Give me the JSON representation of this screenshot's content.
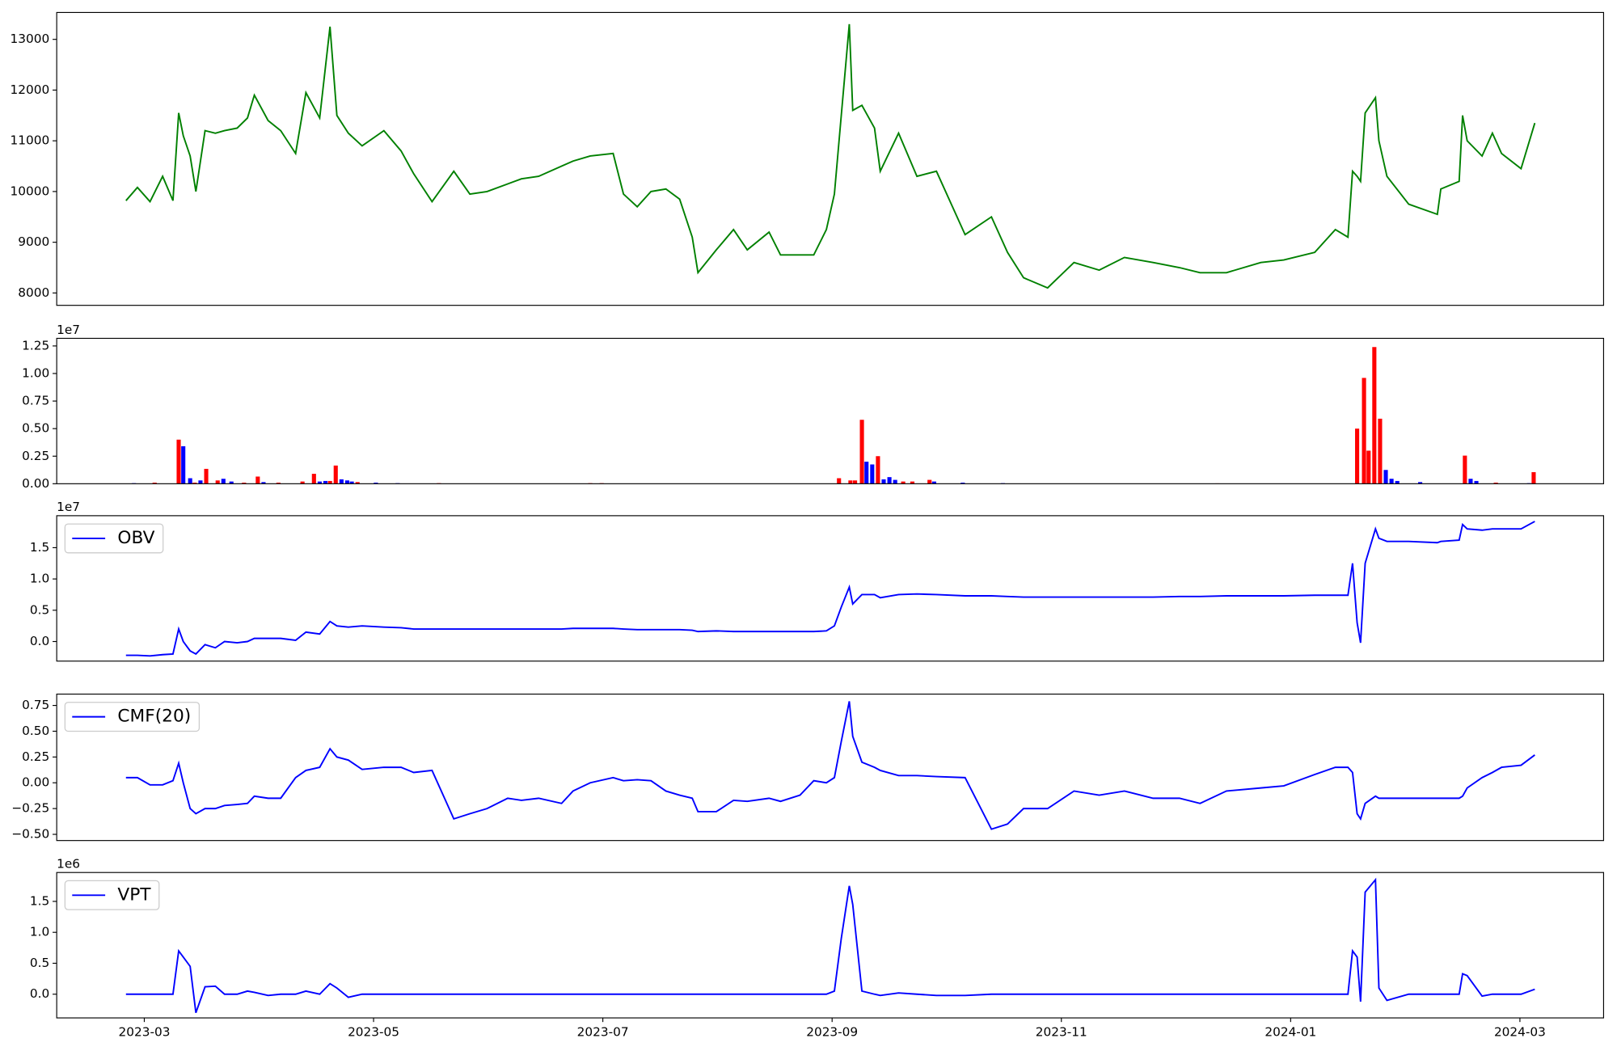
{
  "chart_data": [
    {
      "type": "line",
      "x": [
        1.84,
        1.94,
        2.05,
        2.16,
        2.25,
        2.3,
        2.34,
        2.4,
        2.45,
        2.53,
        2.62,
        2.7,
        2.81,
        2.9,
        2.96,
        3.08,
        3.19,
        3.32,
        3.41,
        3.53,
        3.62,
        3.68,
        3.78,
        3.9,
        4.09,
        4.24,
        4.35,
        4.51,
        4.7,
        4.84,
        4.99,
        5.17,
        5.29,
        5.44,
        5.64,
        5.74,
        5.89,
        6.09,
        6.18,
        6.3,
        6.42,
        6.55,
        6.67,
        6.78,
        6.83,
        6.99,
        7.14,
        7.26,
        7.45,
        7.55,
        7.72,
        7.84,
        7.95,
        8.02,
        8.08,
        8.15,
        8.18,
        8.26,
        8.37,
        8.42,
        8.58,
        8.74,
        8.91,
        9.16,
        9.39,
        9.53,
        9.67,
        9.88,
        10.11,
        10.33,
        10.55,
        10.8,
        11.03,
        11.21,
        11.44,
        11.74,
        11.94,
        12.21,
        12.39,
        12.5,
        12.54,
        12.58,
        12.61,
        12.65,
        12.74,
        12.77,
        12.84,
        13.03,
        13.28,
        13.31,
        13.47,
        13.5,
        13.54,
        13.67,
        13.76,
        13.84,
        14.01,
        14.13
      ],
      "series": [
        {
          "color": "green",
          "values": [
            9820,
            10080,
            9800,
            10300,
            9820,
            11550,
            11100,
            10700,
            10000,
            11200,
            11150,
            11200,
            11250,
            11450,
            11900,
            11400,
            11200,
            10750,
            11950,
            11450,
            13250,
            11500,
            11150,
            10900,
            11200,
            10800,
            10350,
            9800,
            10400,
            9950,
            10000,
            10150,
            10250,
            10300,
            10500,
            10600,
            10700,
            10750,
            9950,
            9700,
            10000,
            10050,
            9850,
            9100,
            8400,
            8850,
            9250,
            8850,
            9200,
            8750,
            8750,
            8750,
            9250,
            9950,
            11500,
            13300,
            11600,
            11700,
            11250,
            10400,
            11150,
            10300,
            10400,
            9150,
            9500,
            8800,
            8300,
            8100,
            8600,
            8450,
            8700,
            8600,
            8500,
            8400,
            8400,
            8600,
            8650,
            8800,
            9250,
            9100,
            10400,
            10300,
            10200,
            11550,
            11850,
            11000,
            10300,
            9750,
            9550,
            10050,
            10200,
            11500,
            11000,
            10700,
            11150,
            10750,
            10450,
            11350
          ]
        }
      ],
      "xlim": [
        1.236,
        14.73
      ],
      "ylim": [
        7756,
        13530
      ],
      "yticks": [
        8000,
        9000,
        10000,
        11000,
        12000,
        13000
      ]
    },
    {
      "type": "bar",
      "series": [
        {
          "color": "red",
          "x": [
            2.09,
            2.3,
            2.44,
            2.54,
            2.64,
            2.87,
            2.99,
            3.17,
            3.38,
            3.48,
            3.62,
            3.67,
            3.86,
            4.57,
            5.89,
            5.99,
            8.06,
            8.16,
            8.2,
            8.26,
            8.4,
            8.62,
            8.7,
            8.85,
            11.36,
            12.58,
            12.64,
            12.68,
            12.73,
            12.78,
            13.52,
            13.79,
            14.12
          ],
          "values": [
            100000,
            4000000,
            100000,
            1350000,
            300000,
            100000,
            650000,
            100000,
            200000,
            900000,
            250000,
            1650000,
            150000,
            50000,
            50000,
            50000,
            500000,
            300000,
            300000,
            5800000,
            2500000,
            200000,
            200000,
            350000,
            30000,
            5000000,
            9600000,
            3000000,
            12400000,
            5900000,
            2550000,
            100000,
            1050000
          ]
        },
        {
          "color": "blue",
          "x": [
            1.91,
            2.34,
            2.4,
            2.49,
            2.69,
            2.76,
            3.04,
            3.53,
            3.58,
            3.72,
            3.77,
            3.81,
            4.02,
            4.21,
            8.3,
            8.35,
            8.45,
            8.5,
            8.55,
            8.89,
            9.14,
            9.49,
            12.83,
            12.88,
            12.93,
            13.13,
            13.57,
            13.62,
            14.08
          ],
          "values": [
            50000,
            3400000,
            500000,
            300000,
            450000,
            200000,
            150000,
            200000,
            250000,
            400000,
            300000,
            200000,
            100000,
            50000,
            2000000,
            1750000,
            400000,
            600000,
            350000,
            200000,
            100000,
            50000,
            1250000,
            450000,
            250000,
            150000,
            450000,
            250000,
            50000
          ]
        }
      ],
      "xlim": [
        1.236,
        14.73
      ],
      "ylim": [
        0,
        13190000
      ],
      "y_offset_label": "1e7",
      "yticks": [
        {
          "value": 0,
          "label": "0.00"
        },
        {
          "value": 2500000,
          "label": "0.25"
        },
        {
          "value": 5000000,
          "label": "0.50"
        },
        {
          "value": 7500000,
          "label": "0.75"
        },
        {
          "value": 10000000,
          "label": "1.00"
        },
        {
          "value": 12500000,
          "label": "1.25"
        }
      ]
    },
    {
      "type": "line",
      "x": [
        1.84,
        1.94,
        2.05,
        2.16,
        2.25,
        2.3,
        2.34,
        2.4,
        2.45,
        2.53,
        2.62,
        2.7,
        2.81,
        2.9,
        2.96,
        3.08,
        3.19,
        3.32,
        3.41,
        3.53,
        3.62,
        3.68,
        3.78,
        3.9,
        4.09,
        4.24,
        4.35,
        4.51,
        4.7,
        4.84,
        4.99,
        5.17,
        5.29,
        5.44,
        5.64,
        5.74,
        5.89,
        6.09,
        6.18,
        6.3,
        6.42,
        6.55,
        6.67,
        6.78,
        6.83,
        6.99,
        7.14,
        7.26,
        7.45,
        7.55,
        7.72,
        7.84,
        7.95,
        8.02,
        8.08,
        8.15,
        8.18,
        8.26,
        8.37,
        8.42,
        8.58,
        8.74,
        8.91,
        9.16,
        9.39,
        9.53,
        9.67,
        9.88,
        10.11,
        10.33,
        10.55,
        10.8,
        11.03,
        11.21,
        11.44,
        11.74,
        11.94,
        12.21,
        12.39,
        12.5,
        12.54,
        12.58,
        12.61,
        12.65,
        12.74,
        12.77,
        12.84,
        13.03,
        13.28,
        13.31,
        13.47,
        13.5,
        13.54,
        13.67,
        13.76,
        13.84,
        14.01,
        14.13
      ],
      "series": [
        {
          "name": "OBV",
          "color": "blue",
          "values": [
            -2200000,
            -2200000,
            -2300000,
            -2100000,
            -2000000,
            2000000,
            0,
            -1500000,
            -2000000,
            -500000,
            -1000000,
            0,
            -200000,
            0,
            500000,
            500000,
            500000,
            200000,
            1500000,
            1200000,
            3200000,
            2500000,
            2300000,
            2500000,
            2300000,
            2200000,
            2000000,
            2000000,
            2000000,
            2000000,
            2000000,
            2000000,
            2000000,
            2000000,
            2000000,
            2100000,
            2100000,
            2100000,
            2000000,
            1900000,
            1900000,
            1900000,
            1900000,
            1800000,
            1600000,
            1700000,
            1600000,
            1600000,
            1600000,
            1600000,
            1600000,
            1600000,
            1700000,
            2500000,
            5500000,
            8700000,
            6000000,
            7500000,
            7500000,
            7000000,
            7500000,
            7600000,
            7500000,
            7300000,
            7300000,
            7200000,
            7100000,
            7100000,
            7100000,
            7100000,
            7100000,
            7100000,
            7200000,
            7200000,
            7300000,
            7300000,
            7300000,
            7400000,
            7400000,
            7400000,
            12500000,
            3000000,
            -200000,
            12500000,
            18000000,
            16500000,
            16000000,
            16000000,
            15800000,
            16000000,
            16200000,
            18700000,
            18000000,
            17800000,
            18000000,
            18000000,
            18000000,
            19200000
          ]
        }
      ],
      "xlim": [
        1.236,
        14.73
      ],
      "ylim": [
        -3130000,
        20110000
      ],
      "y_offset_label": "1e7",
      "legend": "upper left",
      "yticks": [
        {
          "value": 0,
          "label": "0.0"
        },
        {
          "value": 5000000,
          "label": "0.5"
        },
        {
          "value": 10000000,
          "label": "1.0"
        },
        {
          "value": 15000000,
          "label": "1.5"
        }
      ]
    },
    {
      "type": "line",
      "x": [
        1.84,
        1.94,
        2.05,
        2.16,
        2.25,
        2.3,
        2.34,
        2.4,
        2.45,
        2.53,
        2.62,
        2.7,
        2.81,
        2.9,
        2.96,
        3.08,
        3.19,
        3.32,
        3.41,
        3.53,
        3.62,
        3.68,
        3.78,
        3.9,
        4.09,
        4.24,
        4.35,
        4.51,
        4.7,
        4.84,
        4.99,
        5.17,
        5.29,
        5.44,
        5.64,
        5.74,
        5.89,
        6.09,
        6.18,
        6.3,
        6.42,
        6.55,
        6.67,
        6.78,
        6.83,
        6.99,
        7.14,
        7.26,
        7.45,
        7.55,
        7.72,
        7.84,
        7.95,
        8.02,
        8.08,
        8.15,
        8.18,
        8.26,
        8.37,
        8.42,
        8.58,
        8.74,
        8.91,
        9.16,
        9.39,
        9.53,
        9.67,
        9.88,
        10.11,
        10.33,
        10.55,
        10.8,
        11.03,
        11.21,
        11.44,
        11.74,
        11.94,
        12.21,
        12.39,
        12.5,
        12.54,
        12.58,
        12.61,
        12.65,
        12.74,
        12.77,
        12.84,
        13.03,
        13.28,
        13.31,
        13.47,
        13.5,
        13.54,
        13.67,
        13.76,
        13.84,
        14.01,
        14.13
      ],
      "series": [
        {
          "name": "CMF(20)",
          "color": "blue",
          "values": [
            0.05,
            0.05,
            -0.02,
            -0.02,
            0.02,
            0.19,
            0,
            -0.25,
            -0.3,
            -0.25,
            -0.25,
            -0.22,
            -0.21,
            -0.2,
            -0.13,
            -0.15,
            -0.15,
            0.05,
            0.12,
            0.15,
            0.33,
            0.25,
            0.22,
            0.13,
            0.15,
            0.15,
            0.1,
            0.12,
            -0.35,
            -0.3,
            -0.25,
            -0.15,
            -0.17,
            -0.15,
            -0.2,
            -0.08,
            0,
            0.05,
            0.02,
            0.03,
            0.02,
            -0.08,
            -0.12,
            -0.15,
            -0.28,
            -0.28,
            -0.17,
            -0.18,
            -0.15,
            -0.18,
            -0.12,
            0.02,
            0,
            0.05,
            0.4,
            0.79,
            0.45,
            0.2,
            0.15,
            0.12,
            0.07,
            0.07,
            0.06,
            0.05,
            -0.45,
            -0.4,
            -0.25,
            -0.25,
            -0.08,
            -0.12,
            -0.08,
            -0.15,
            -0.15,
            -0.2,
            -0.08,
            -0.05,
            -0.03,
            0.08,
            0.15,
            0.15,
            0.1,
            -0.3,
            -0.35,
            -0.2,
            -0.13,
            -0.15,
            -0.15,
            -0.15,
            -0.15,
            -0.15,
            -0.15,
            -0.13,
            -0.05,
            0.05,
            0.1,
            0.15,
            0.17,
            0.27
          ]
        }
      ],
      "xlim": [
        1.236,
        14.73
      ],
      "ylim": [
        -0.56,
        0.86
      ],
      "legend": "upper left",
      "yticks": [
        {
          "value": -0.5,
          "label": "−0.50"
        },
        {
          "value": -0.25,
          "label": "−0.25"
        },
        {
          "value": 0,
          "label": "0.00"
        },
        {
          "value": 0.25,
          "label": "0.25"
        },
        {
          "value": 0.5,
          "label": "0.50"
        },
        {
          "value": 0.75,
          "label": "0.75"
        }
      ]
    },
    {
      "type": "line",
      "x": [
        1.84,
        1.94,
        2.05,
        2.16,
        2.25,
        2.3,
        2.34,
        2.4,
        2.45,
        2.53,
        2.62,
        2.7,
        2.81,
        2.9,
        2.96,
        3.08,
        3.19,
        3.32,
        3.41,
        3.53,
        3.62,
        3.68,
        3.78,
        3.9,
        4.09,
        4.24,
        4.35,
        4.51,
        4.7,
        4.84,
        4.99,
        5.17,
        5.29,
        5.44,
        5.64,
        5.74,
        5.89,
        6.09,
        6.18,
        6.3,
        6.42,
        6.55,
        6.67,
        6.78,
        6.83,
        6.99,
        7.14,
        7.26,
        7.45,
        7.55,
        7.72,
        7.84,
        7.95,
        8.02,
        8.08,
        8.15,
        8.18,
        8.26,
        8.37,
        8.42,
        8.58,
        8.74,
        8.91,
        9.16,
        9.39,
        9.53,
        9.67,
        9.88,
        10.11,
        10.33,
        10.55,
        10.8,
        11.03,
        11.21,
        11.44,
        11.74,
        11.94,
        12.21,
        12.39,
        12.5,
        12.54,
        12.58,
        12.61,
        12.65,
        12.74,
        12.77,
        12.84,
        13.03,
        13.28,
        13.31,
        13.47,
        13.5,
        13.54,
        13.67,
        13.76,
        13.84,
        14.01,
        14.13
      ],
      "series": [
        {
          "name": "VPT",
          "color": "blue",
          "values": [
            0,
            0,
            0,
            0,
            0,
            700000,
            600000,
            450000,
            -300000,
            120000,
            130000,
            0,
            0,
            50000,
            30000,
            -20000,
            0,
            0,
            50000,
            0,
            170000,
            100000,
            -50000,
            0,
            0,
            0,
            0,
            0,
            0,
            0,
            0,
            0,
            0,
            0,
            0,
            0,
            0,
            0,
            0,
            0,
            0,
            0,
            0,
            0,
            0,
            0,
            0,
            0,
            0,
            0,
            0,
            0,
            0,
            50000,
            900000,
            1750000,
            1450000,
            50000,
            0,
            -20000,
            20000,
            0,
            -20000,
            -20000,
            0,
            0,
            0,
            0,
            0,
            0,
            0,
            0,
            0,
            0,
            0,
            0,
            0,
            0,
            0,
            0,
            700000,
            600000,
            -120000,
            1650000,
            1850000,
            100000,
            -100000,
            0,
            0,
            0,
            0,
            330000,
            300000,
            -30000,
            0,
            0,
            0,
            80000
          ]
        }
      ],
      "xlim": [
        1.236,
        14.73
      ],
      "ylim": [
        -383000,
        1967000
      ],
      "y_offset_label": "1e6",
      "legend": "upper left",
      "yticks": [
        {
          "value": 0,
          "label": "0.0"
        },
        {
          "value": 500000,
          "label": "0.5"
        },
        {
          "value": 1000000,
          "label": "1.0"
        },
        {
          "value": 1500000,
          "label": "1.5"
        }
      ],
      "xticks": [
        {
          "value": 2,
          "label": "2023-03"
        },
        {
          "value": 4,
          "label": "2023-05"
        },
        {
          "value": 6,
          "label": "2023-07"
        },
        {
          "value": 8,
          "label": "2023-09"
        },
        {
          "value": 10,
          "label": "2023-11"
        },
        {
          "value": 12,
          "label": "2024-01"
        },
        {
          "value": 14,
          "label": "2024-03"
        }
      ]
    }
  ]
}
